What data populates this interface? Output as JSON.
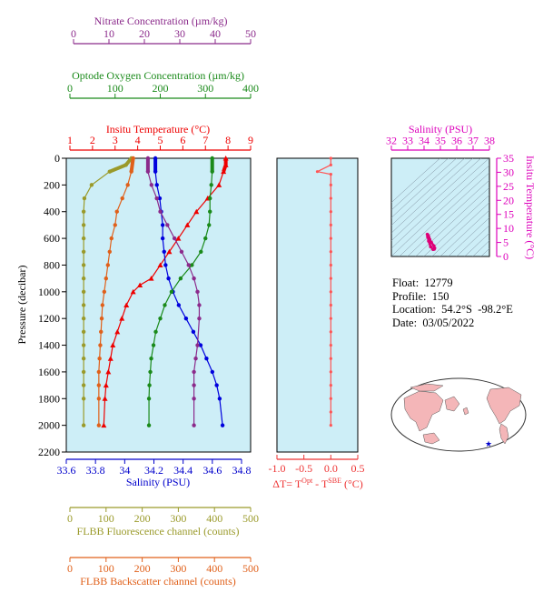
{
  "axes": {
    "nitrate": {
      "label": "Nitrate Concentration (µm/kg)",
      "range": [
        0,
        50
      ],
      "ticks": [
        0,
        10,
        20,
        30,
        40,
        50
      ],
      "color": "#8b2a8b"
    },
    "oxygen": {
      "label": "Optode Oxygen Concentration (µm/kg)",
      "range": [
        0,
        400
      ],
      "ticks": [
        0,
        100,
        200,
        300,
        400
      ],
      "color": "#1a8a1a"
    },
    "temperature": {
      "label": "Insitu Temperature (°C)",
      "range": [
        1,
        9
      ],
      "ticks": [
        1,
        2,
        3,
        4,
        5,
        6,
        7,
        8,
        9
      ],
      "color": "#ee0000"
    },
    "salinity": {
      "label": "Salinity (PSU)",
      "range": [
        33.6,
        34.8
      ],
      "ticks": [
        33.6,
        33.8,
        34.0,
        34.2,
        34.4,
        34.6,
        34.8
      ],
      "color": "#0000cc"
    },
    "pressure": {
      "label": "Pressure (decibar)",
      "range": [
        0,
        2200
      ],
      "ticks": [
        0,
        200,
        400,
        600,
        800,
        1000,
        1200,
        1400,
        1600,
        1800,
        2000,
        2200
      ],
      "color": "#000000"
    },
    "fluorescence": {
      "label": "FLBB Fluorescence channel (counts)",
      "range": [
        0,
        500
      ],
      "ticks": [
        0,
        100,
        200,
        300,
        400,
        500
      ],
      "color": "#9a9a2a"
    },
    "backscatter": {
      "label": "FLBB Backscatter channel (counts)",
      "range": [
        0,
        500
      ],
      "ticks": [
        0,
        100,
        200,
        300,
        400,
        500
      ],
      "color": "#e0601a"
    },
    "delta_t": {
      "label_prefix": "ΔT= T",
      "label_sup1": "Opt",
      "label_mid": " - T",
      "label_sup2": "SBE",
      "label_suffix": " (°C)",
      "range": [
        -1.0,
        0.5
      ],
      "ticks": [
        "-1.0",
        "-0.5",
        "0.0",
        "0.5"
      ],
      "color": "#ee3333"
    },
    "ts_salinity": {
      "label": "Salinity (PSU)",
      "range": [
        32,
        38
      ],
      "ticks": [
        32,
        33,
        34,
        35,
        36,
        37,
        38
      ],
      "color": "#dd00bb"
    },
    "ts_temperature": {
      "label": "Insitu Temperature (°C)",
      "range": [
        0,
        35
      ],
      "ticks": [
        0,
        5,
        10,
        15,
        20,
        25,
        30,
        35
      ],
      "color": "#dd00bb"
    }
  },
  "chart_data": [
    {
      "type": "line",
      "title": "",
      "ylabel": "Pressure (decibar)",
      "ylim": [
        2200,
        0
      ],
      "grid": false,
      "background": "#cdeef7",
      "series": [
        {
          "name": "Insitu Temperature (°C)",
          "axis": "temperature",
          "color": "#ee0000",
          "marker": "triangle",
          "x": [
            7.9,
            7.9,
            7.8,
            7.6,
            7.1,
            6.6,
            6.2,
            5.8,
            5.4,
            5.0,
            4.6,
            4.1,
            3.8,
            3.5,
            3.3,
            3.1,
            2.9,
            2.8,
            2.7,
            2.6,
            2.55,
            2.5
          ],
          "y": [
            0,
            50,
            100,
            200,
            300,
            400,
            500,
            600,
            700,
            800,
            900,
            950,
            1000,
            1100,
            1200,
            1300,
            1400,
            1500,
            1600,
            1700,
            1800,
            2000
          ]
        },
        {
          "name": "Salinity (PSU)",
          "axis": "salinity",
          "color": "#0000dd",
          "marker": "circle",
          "x": [
            34.21,
            34.21,
            34.22,
            34.24,
            34.25,
            34.26,
            34.26,
            34.27,
            34.28,
            34.3,
            34.33,
            34.37,
            34.42,
            34.47,
            34.52,
            34.56,
            34.6,
            34.63,
            34.65,
            34.67
          ],
          "y": [
            0,
            100,
            200,
            300,
            400,
            500,
            600,
            700,
            800,
            900,
            1000,
            1100,
            1200,
            1300,
            1400,
            1500,
            1600,
            1700,
            1800,
            2000
          ]
        },
        {
          "name": "Optode Oxygen Concentration (µm/kg)",
          "axis": "oxygen",
          "color": "#1a8a1a",
          "marker": "circle",
          "x": [
            315,
            315,
            313,
            310,
            310,
            308,
            300,
            290,
            270,
            245,
            225,
            210,
            200,
            190,
            185,
            180,
            178,
            176,
            175,
            175
          ],
          "y": [
            0,
            100,
            200,
            300,
            400,
            500,
            600,
            700,
            800,
            900,
            1000,
            1100,
            1200,
            1300,
            1400,
            1500,
            1600,
            1700,
            1800,
            2000
          ]
        },
        {
          "name": "Nitrate Concentration (µm/kg)",
          "axis": "nitrate",
          "color": "#8b2a8b",
          "marker": "circle",
          "x": [
            21,
            21,
            22,
            23.5,
            24.5,
            26.5,
            28.5,
            30.5,
            32.5,
            34,
            35,
            35.5,
            35.5,
            35,
            34.5,
            34,
            34,
            34,
            34
          ],
          "y": [
            0,
            100,
            200,
            300,
            400,
            500,
            600,
            700,
            800,
            900,
            1000,
            1100,
            1200,
            1400,
            1500,
            1600,
            1700,
            1800,
            2000
          ]
        },
        {
          "name": "FLBB Fluorescence channel (counts)",
          "axis": "fluorescence",
          "color": "#9a9a2a",
          "marker": "circle",
          "x": [
            170,
            155,
            110,
            60,
            40,
            38,
            38,
            38,
            38,
            38,
            38,
            38,
            38,
            38,
            38,
            38,
            38,
            38,
            38,
            38,
            38
          ],
          "y": [
            0,
            50,
            100,
            200,
            300,
            400,
            500,
            600,
            700,
            800,
            900,
            1000,
            1100,
            1200,
            1300,
            1400,
            1500,
            1600,
            1700,
            1800,
            2000
          ]
        },
        {
          "name": "FLBB Backscatter channel (counts)",
          "axis": "backscatter",
          "color": "#e0601a",
          "marker": "circle",
          "x": [
            175,
            170,
            160,
            145,
            130,
            125,
            115,
            110,
            105,
            100,
            95,
            90,
            88,
            86,
            84,
            82,
            80,
            80,
            80,
            80
          ],
          "y": [
            0,
            100,
            200,
            300,
            400,
            500,
            600,
            700,
            800,
            900,
            1000,
            1100,
            1200,
            1300,
            1400,
            1500,
            1600,
            1700,
            1800,
            2000
          ]
        }
      ]
    },
    {
      "type": "line",
      "xlabel": "ΔT= TOpt - TSBE (°C)",
      "xlim": [
        -1.0,
        0.5
      ],
      "ylim": [
        2200,
        0
      ],
      "series": [
        {
          "name": "ΔT",
          "color": "#ff5555",
          "x": [
            0.0,
            0.0,
            -0.25,
            0.0,
            0.0,
            0.0,
            0.0,
            0.0,
            0.0,
            0.0,
            0.0,
            0.0,
            0.0,
            0.0,
            0.0,
            0.0,
            0.0,
            0.0,
            0.0,
            0.0,
            0.0,
            0.0,
            0.0
          ],
          "y": [
            0,
            50,
            100,
            120,
            200,
            300,
            400,
            500,
            600,
            700,
            800,
            900,
            1000,
            1100,
            1200,
            1300,
            1400,
            1500,
            1600,
            1700,
            1800,
            1900,
            2000
          ]
        }
      ]
    },
    {
      "type": "scatter",
      "xlabel": "Salinity (PSU)",
      "ylabel": "Insitu Temperature (°C)",
      "xlim": [
        32,
        38
      ],
      "ylim": [
        0,
        35
      ],
      "series": [
        {
          "name": "T-S",
          "color": "#dd0077",
          "x": [
            34.2,
            34.25,
            34.3,
            34.35,
            34.45,
            34.6,
            34.65,
            34.62,
            34.55,
            34.4,
            34.28,
            34.22
          ],
          "y": [
            7.9,
            7.5,
            6.8,
            6.0,
            5.0,
            3.8,
            3.0,
            2.6,
            2.5,
            3.5,
            5.5,
            7.0
          ]
        }
      ]
    }
  ],
  "info": {
    "float": "Float:  12779",
    "profile": "Profile:  150",
    "location": "Location:  54.2°S  -98.2°E",
    "date": "Date:  03/05/2022"
  }
}
